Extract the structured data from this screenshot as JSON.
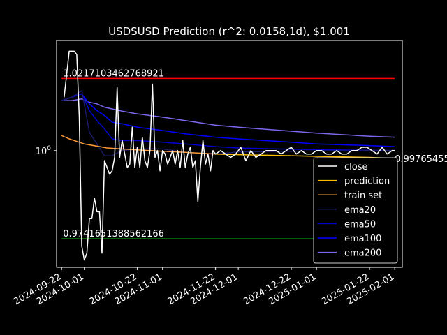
{
  "chart_data": {
    "type": "line",
    "title": "USDSUSD Prediction (r^2: 0.0158,1d), $1.001",
    "xlabel": "",
    "ylabel": "",
    "y_scale": "log",
    "xlim": [
      "2024-09-20",
      "2025-02-04"
    ],
    "ylim": [
      0.9659,
      1.0333
    ],
    "x_ticks": [
      "2024-09-22",
      "2024-10-01",
      "2024-10-22",
      "2024-11-01",
      "2024-11-22",
      "2024-12-01",
      "2024-12-22",
      "2025-01-01",
      "2025-01-22",
      "2025-02-01"
    ],
    "y_ticks": [
      1.0
    ],
    "y_tick_labels": [
      "10^0"
    ],
    "grid": false,
    "legend_position": "lower-right",
    "hlines": [
      {
        "value": 1.0217103462768922,
        "label": "1.0217103462768921",
        "color": "#ff0000"
      },
      {
        "value": 0.9741651388562166,
        "label": "0.9741651388562166",
        "color": "#008000"
      }
    ],
    "end_label": {
      "value": 0.99765455,
      "label": "0.99765455"
    },
    "series": [
      {
        "name": "close",
        "color": "#ffffff",
        "x": [
          "2024-09-23",
          "2024-09-24",
          "2024-09-25",
          "2024-09-26",
          "2024-09-27",
          "2024-09-28",
          "2024-09-29",
          "2024-09-30",
          "2024-10-01",
          "2024-10-02",
          "2024-10-03",
          "2024-10-04",
          "2024-10-05",
          "2024-10-06",
          "2024-10-07",
          "2024-10-08",
          "2024-10-09",
          "2024-10-10",
          "2024-10-11",
          "2024-10-12",
          "2024-10-13",
          "2024-10-14",
          "2024-10-15",
          "2024-10-16",
          "2024-10-17",
          "2024-10-18",
          "2024-10-19",
          "2024-10-20",
          "2024-10-21",
          "2024-10-22",
          "2024-10-23",
          "2024-10-24",
          "2024-10-25",
          "2024-10-26",
          "2024-10-27",
          "2024-10-28",
          "2024-10-29",
          "2024-10-30",
          "2024-10-31",
          "2024-11-01",
          "2024-11-02",
          "2024-11-03",
          "2024-11-04",
          "2024-11-05",
          "2024-11-06",
          "2024-11-07",
          "2024-11-08",
          "2024-11-09",
          "2024-11-10",
          "2024-11-11",
          "2024-11-12",
          "2024-11-13",
          "2024-11-14",
          "2024-11-15",
          "2024-11-16",
          "2024-11-17",
          "2024-11-18",
          "2024-11-19",
          "2024-11-20",
          "2024-11-21",
          "2024-11-22",
          "2024-11-24",
          "2024-11-26",
          "2024-11-28",
          "2024-11-30",
          "2024-12-02",
          "2024-12-04",
          "2024-12-06",
          "2024-12-08",
          "2024-12-10",
          "2024-12-12",
          "2024-12-14",
          "2024-12-16",
          "2024-12-18",
          "2024-12-20",
          "2024-12-22",
          "2024-12-24",
          "2024-12-26",
          "2024-12-28",
          "2024-12-30",
          "2025-01-01",
          "2025-01-03",
          "2025-01-05",
          "2025-01-07",
          "2025-01-09",
          "2025-01-11",
          "2025-01-13",
          "2025-01-15",
          "2025-01-17",
          "2025-01-19",
          "2025-01-21",
          "2025-01-23",
          "2025-01-25",
          "2025-01-27",
          "2025-01-29",
          "2025-01-31",
          "2025-02-01"
        ],
        "y": [
          1.016,
          1.023,
          1.03,
          1.03,
          1.03,
          1.029,
          1.01,
          0.972,
          0.968,
          0.97,
          0.98,
          0.98,
          0.986,
          0.982,
          0.982,
          0.97,
          0.997,
          0.995,
          0.993,
          0.994,
          0.998,
          1.019,
          0.998,
          1.003,
          0.999,
          0.995,
          0.996,
          1.007,
          0.995,
          1.001,
          0.995,
          1.004,
          0.997,
          0.995,
          1.0,
          1.02,
          0.998,
          1.0,
          0.994,
          1.0,
          0.999,
          0.996,
          0.998,
          1.0,
          0.996,
          1.0,
          0.995,
          1.003,
          0.995,
          0.999,
          1.001,
          0.995,
          0.997,
          0.985,
          0.995,
          1.003,
          0.996,
          0.999,
          0.994,
          1.0,
          0.999,
          1.0,
          0.999,
          0.998,
          0.999,
          1.001,
          0.997,
          1.0,
          0.998,
          0.999,
          1.0,
          1.0,
          1.0,
          0.999,
          1.0,
          1.001,
          0.999,
          1.0,
          0.999,
          0.999,
          1.0,
          1.0,
          0.999,
          0.999,
          1.0,
          0.999,
          0.999,
          1.0,
          1.0,
          1.001,
          1.001,
          1.0,
          0.999,
          1.001,
          0.999,
          1.0,
          1.0
        ]
      },
      {
        "name": "prediction",
        "color": "#ffc000",
        "x": [
          "2024-11-22",
          "2024-12-01",
          "2024-12-22",
          "2025-01-01",
          "2025-01-22",
          "2025-02-01"
        ],
        "y": [
          0.999,
          0.9988,
          0.9985,
          0.9983,
          0.998,
          0.9977
        ]
      },
      {
        "name": "train set",
        "color": "#ff9933",
        "x": [
          "2024-09-22",
          "2024-09-25",
          "2024-10-01",
          "2024-10-10",
          "2024-10-20",
          "2024-11-01",
          "2024-11-10",
          "2024-11-22"
        ],
        "y": [
          1.0045,
          1.0035,
          1.002,
          1.0008,
          1.0003,
          0.9998,
          0.9995,
          0.999
        ]
      },
      {
        "name": "ema20",
        "color": "#1a1a66",
        "x": [
          "2024-09-22",
          "2024-09-26",
          "2024-09-30",
          "2024-10-03",
          "2024-10-06",
          "2024-10-09",
          "2024-10-12",
          "2024-10-16",
          "2024-10-22",
          "2024-11-01",
          "2024-11-10",
          "2024-11-22",
          "2024-12-01",
          "2024-12-22",
          "2025-01-01",
          "2025-01-22",
          "2025-02-01"
        ],
        "y": [
          1.015,
          1.016,
          1.018,
          1.0055,
          1.002,
          0.9985,
          0.9985,
          1.0,
          1.0005,
          1.0005,
          0.9995,
          0.999,
          0.9996,
          0.9998,
          0.9999,
          1.0,
          1.0001
        ]
      },
      {
        "name": "ema50",
        "color": "#0000cc",
        "x": [
          "2024-09-22",
          "2024-09-26",
          "2024-09-30",
          "2024-10-03",
          "2024-10-06",
          "2024-10-09",
          "2024-10-12",
          "2024-10-16",
          "2024-10-22",
          "2024-11-01",
          "2024-11-10",
          "2024-11-22",
          "2024-12-01",
          "2024-12-22",
          "2025-01-01",
          "2025-01-22",
          "2025-02-01"
        ],
        "y": [
          1.015,
          1.016,
          1.017,
          1.012,
          1.009,
          1.0065,
          1.0035,
          1.003,
          1.003,
          1.0025,
          1.002,
          1.0012,
          1.0008,
          1.0004,
          1.0003,
          1.0001,
          1.0
        ]
      },
      {
        "name": "ema100",
        "color": "#0000ff",
        "x": [
          "2024-09-22",
          "2024-09-26",
          "2024-09-30",
          "2024-10-03",
          "2024-10-06",
          "2024-10-09",
          "2024-10-12",
          "2024-10-16",
          "2024-10-22",
          "2024-11-01",
          "2024-11-10",
          "2024-11-22",
          "2024-12-01",
          "2024-12-22",
          "2025-01-01",
          "2025-01-22",
          "2025-02-01"
        ],
        "y": [
          1.015,
          1.016,
          1.017,
          1.014,
          1.012,
          1.0105,
          1.0085,
          1.008,
          1.007,
          1.006,
          1.005,
          1.004,
          1.0035,
          1.0025,
          1.002,
          1.0015,
          1.0012
        ]
      },
      {
        "name": "ema200",
        "color": "#7b68ee",
        "x": [
          "2024-09-22",
          "2024-09-26",
          "2024-09-30",
          "2024-10-03",
          "2024-10-06",
          "2024-10-09",
          "2024-10-12",
          "2024-10-16",
          "2024-10-22",
          "2024-11-01",
          "2024-11-10",
          "2024-11-22",
          "2024-12-01",
          "2024-12-22",
          "2025-01-01",
          "2025-01-22",
          "2025-02-01"
        ],
        "y": [
          1.015,
          1.015,
          1.0155,
          1.0145,
          1.014,
          1.013,
          1.0125,
          1.0118,
          1.011,
          1.01,
          1.009,
          1.0076,
          1.007,
          1.0058,
          1.0052,
          1.0043,
          1.004
        ]
      }
    ]
  }
}
